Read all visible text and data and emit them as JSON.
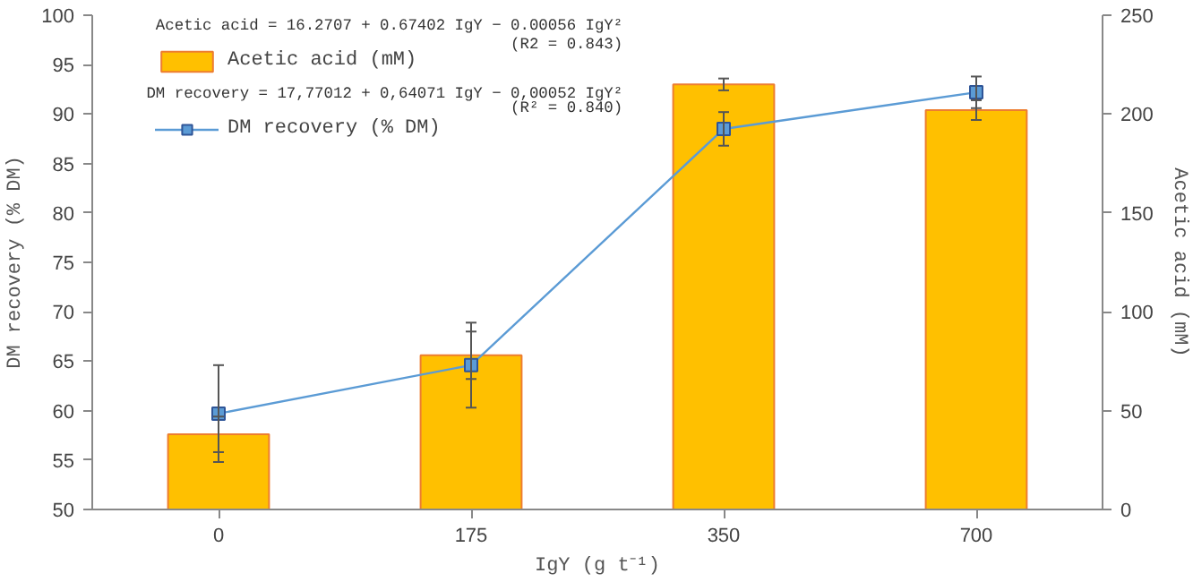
{
  "chart_data": {
    "type": "bar",
    "xlabel": "IgY (g t⁻¹)",
    "ylabel": "DM recovery (% DM)",
    "y2label": "Acetic acid (mM)",
    "categories": [
      "0",
      "175",
      "350",
      "700"
    ],
    "series": [
      {
        "name": "Acetic acid (mM)",
        "axis": "y2",
        "color": "#ffc000",
        "values": [
          38,
          78,
          215,
          202
        ],
        "errors": [
          9,
          12,
          3,
          5
        ]
      },
      {
        "name": "DM recovery (% DM)",
        "type": "line",
        "color": "#5b9bd5",
        "marker": "square",
        "values": [
          59.7,
          64.6,
          88.5,
          92.2
        ],
        "errors": [
          4.9,
          4.3,
          1.7,
          1.6
        ]
      }
    ],
    "ylim": [
      50,
      100
    ],
    "yticks": [
      50,
      55,
      60,
      65,
      70,
      75,
      80,
      85,
      90,
      95,
      100
    ],
    "y2lim": [
      0,
      250
    ],
    "y2ticks": [
      0,
      50,
      100,
      150,
      200,
      250
    ],
    "annotations": [
      "Acetic acid = 16.2707 + 0.67402 IgY − 0.00056 IgY²",
      "(R2 = 0.843)",
      "DM recovery = 17,77012 + 0,64071 IgY − 0,00052 IgY²",
      "(R² = 0.840)"
    ],
    "legend": "top left",
    "grid": false
  }
}
